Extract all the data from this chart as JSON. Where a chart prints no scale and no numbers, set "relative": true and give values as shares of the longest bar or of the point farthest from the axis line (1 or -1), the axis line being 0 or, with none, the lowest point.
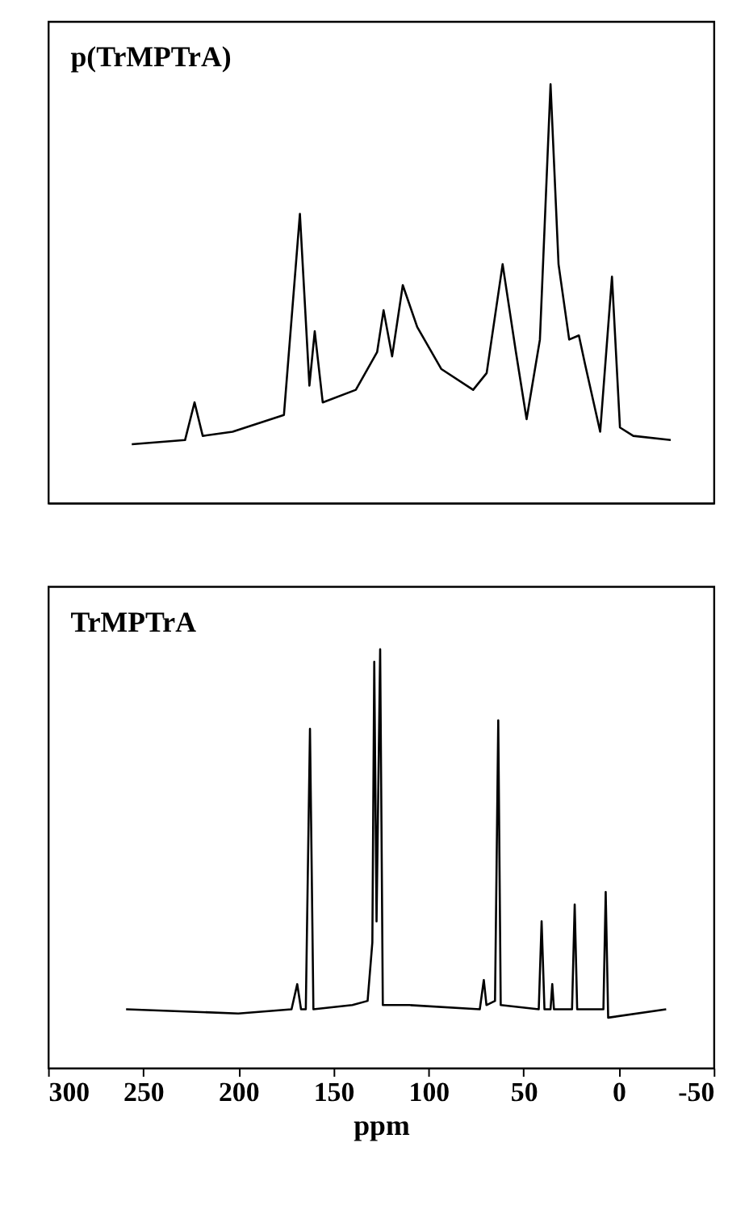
{
  "chart_data": [
    {
      "type": "line",
      "relative": true,
      "xlim": [
        300,
        -50
      ],
      "annotations": [
        "p(TrMPTrA)"
      ],
      "series": [
        {
          "color": "#000000",
          "x": [
            256,
            228,
            223,
            218.7,
            203,
            176,
            167.6,
            162.6,
            159.8,
            155.6,
            138.2,
            127,
            123.6,
            119.1,
            113.5,
            105.9,
            93.3,
            76.5,
            69.4,
            61,
            54,
            48.4,
            41.4,
            35.8,
            31.6,
            26,
            20.9,
            17.6,
            9.7,
            3.5,
            -0.7,
            -7.7,
            -27.4
          ],
          "values": [
            0.14,
            0.15,
            0.24,
            0.16,
            0.17,
            0.21,
            0.69,
            0.28,
            0.41,
            0.24,
            0.27,
            0.36,
            0.46,
            0.35,
            0.52,
            0.42,
            0.32,
            0.27,
            0.31,
            0.57,
            0.36,
            0.2,
            0.39,
            1.0,
            0.57,
            0.39,
            0.4,
            0.33,
            0.17,
            0.54,
            0.18,
            0.16,
            0.15
          ]
        }
      ]
    },
    {
      "type": "line",
      "relative": true,
      "xlim": [
        300,
        -50
      ],
      "xlabel": "ppm",
      "annotations": [
        "TrMPTrA"
      ],
      "xticks": [
        300,
        250,
        200,
        150,
        100,
        50,
        0,
        -50
      ],
      "series": [
        {
          "color": "#000000",
          "x": [
            259,
            200,
            172,
            169,
            167,
            164.5,
            162.3,
            160.5,
            140,
            132,
            129.5,
            128.5,
            127.3,
            125.4,
            124,
            110,
            73,
            70.9,
            69.5,
            65,
            63.3,
            62,
            42,
            40.5,
            39,
            35.8,
            34.9,
            34,
            24.5,
            23.1,
            21.8,
            8,
            6.8,
            5.5,
            -25
          ],
          "values": [
            0.14,
            0.13,
            0.14,
            0.2,
            0.14,
            0.14,
            0.81,
            0.14,
            0.15,
            0.16,
            0.3,
            0.97,
            0.35,
            1.0,
            0.15,
            0.15,
            0.14,
            0.21,
            0.15,
            0.16,
            0.83,
            0.15,
            0.14,
            0.35,
            0.14,
            0.14,
            0.2,
            0.14,
            0.14,
            0.39,
            0.14,
            0.14,
            0.42,
            0.12,
            0.14
          ]
        }
      ]
    }
  ]
}
